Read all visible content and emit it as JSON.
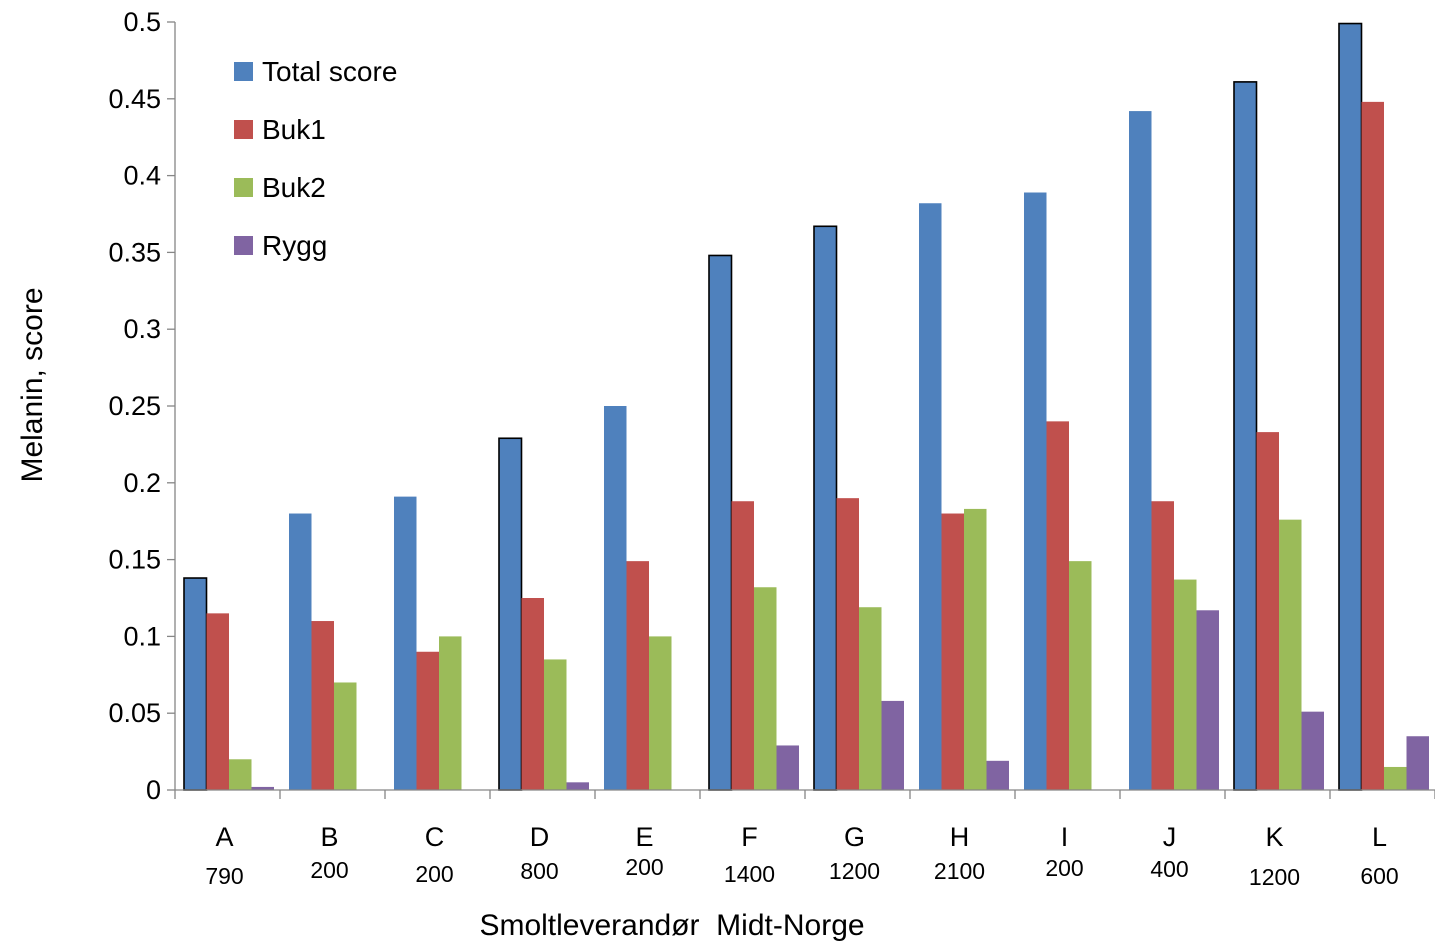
{
  "chart_data": {
    "type": "bar",
    "title": "",
    "xlabel": "Smoltleverandør  Midt-Norge",
    "ylabel": "Melanin, score",
    "ylim": [
      0,
      0.5
    ],
    "yticks": [
      "0",
      "0.05",
      "0.1",
      "0.15",
      "0.2",
      "0.25",
      "0.3",
      "0.35",
      "0.4",
      "0.45",
      "0.5"
    ],
    "grid": false,
    "legend_position": "top-left",
    "categories": [
      "A",
      "B",
      "C",
      "D",
      "E",
      "F",
      "G",
      "H",
      "I",
      "J",
      "K",
      "L"
    ],
    "category_sublabels": [
      "790",
      "200",
      "200",
      "800",
      "200",
      "1400",
      "1200",
      "2100",
      "200",
      "400",
      "1200",
      "600"
    ],
    "series": [
      {
        "name": "Total score",
        "color": "#4F81BD",
        "values": [
          0.138,
          0.18,
          0.191,
          0.229,
          0.25,
          0.348,
          0.367,
          0.382,
          0.389,
          0.442,
          0.461,
          0.499
        ],
        "outlined": [
          true,
          false,
          false,
          true,
          false,
          true,
          true,
          false,
          false,
          false,
          true,
          true
        ]
      },
      {
        "name": "Buk1",
        "color": "#C0504D",
        "values": [
          0.115,
          0.11,
          0.09,
          0.125,
          0.149,
          0.188,
          0.19,
          0.18,
          0.24,
          0.188,
          0.233,
          0.448
        ]
      },
      {
        "name": "Buk2",
        "color": "#9BBB59",
        "values": [
          0.02,
          0.07,
          0.1,
          0.085,
          0.1,
          0.132,
          0.119,
          0.183,
          0.149,
          0.137,
          0.176,
          0.015
        ]
      },
      {
        "name": "Rygg",
        "color": "#8064A2",
        "values": [
          0.002,
          0,
          0,
          0.005,
          0,
          0.029,
          0.058,
          0.019,
          0,
          0.117,
          0.051,
          0.035
        ]
      }
    ]
  }
}
